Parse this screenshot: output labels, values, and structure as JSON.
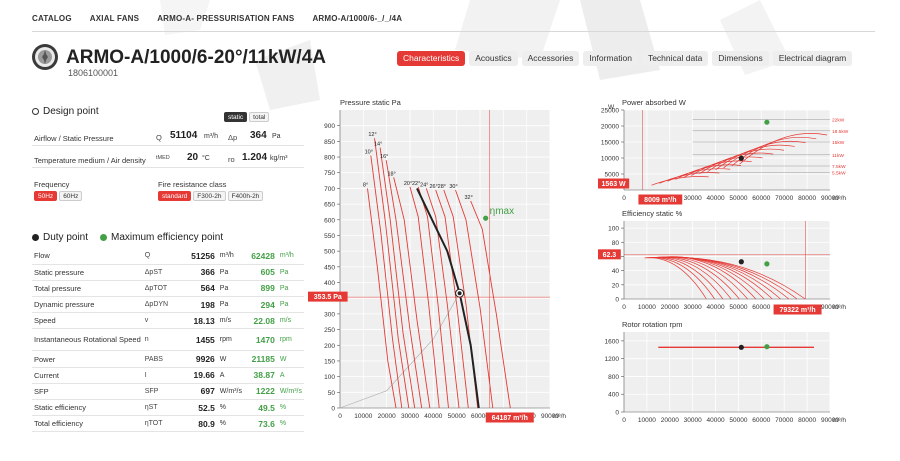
{
  "breadcrumb": [
    "CATALOG",
    "AXIAL FANS",
    "ARMO-A- PRESSURISATION FANS",
    "ARMO-A/1000/6-_/_/4A"
  ],
  "product": {
    "title": "ARMO-A/1000/6-20°/11kW/4A",
    "code": "1806100001"
  },
  "tabs": [
    {
      "label": "Characteristics",
      "active": true
    },
    {
      "label": "Acoustics",
      "active": false
    },
    {
      "label": "Accessories",
      "active": false
    },
    {
      "label": "Information",
      "active": false
    },
    {
      "label": "Technical data",
      "active": false
    },
    {
      "label": "Dimensions",
      "active": false
    },
    {
      "label": "Electrical diagram",
      "active": false
    }
  ],
  "design_point": {
    "title": "Design point",
    "mode_options": [
      "static",
      "total"
    ],
    "airflow_label": "Airflow / Static Pressure",
    "q_symbol": "Q",
    "q_value": "51104",
    "q_unit": "m³/h",
    "dp_symbol": "Δp",
    "dp_value": "364",
    "dp_unit": "Pa",
    "temp_label": "Temperature medium / Air density",
    "t_symbol": "tMED",
    "t_value": "20",
    "t_unit": "°C",
    "rho_symbol": "ro",
    "rho_value": "1.204",
    "rho_unit": "kg/m³",
    "frequency_label": "Frequency",
    "frequency_options": [
      "50Hz",
      "60Hz"
    ],
    "fire_label": "Fire resistance class",
    "fire_options": [
      "standard",
      "F300-2h",
      "F400h-2h"
    ]
  },
  "duty": {
    "duty_title": "Duty point",
    "max_title": "Maximum efficiency point",
    "rows": [
      {
        "label": "Flow",
        "symbol": "Q",
        "duty": "51256",
        "duty_unit": "m³/h",
        "max": "62428",
        "max_unit": "m³/h"
      },
      {
        "label": "Static pressure",
        "symbol": "ΔpST",
        "duty": "366",
        "duty_unit": "Pa",
        "max": "605",
        "max_unit": "Pa"
      },
      {
        "label": "Total pressure",
        "symbol": "ΔpTOT",
        "duty": "564",
        "duty_unit": "Pa",
        "max": "899",
        "max_unit": "Pa"
      },
      {
        "label": "Dynamic pressure",
        "symbol": "ΔpDYN",
        "duty": "198",
        "duty_unit": "Pa",
        "max": "294",
        "max_unit": "Pa"
      },
      {
        "label": "Speed",
        "symbol": "v",
        "duty": "18.13",
        "duty_unit": "m/s",
        "max": "22.08",
        "max_unit": "m/s"
      },
      {
        "label": "Instantaneous Rotational Speed",
        "symbol": "n",
        "duty": "1455",
        "duty_unit": "rpm",
        "max": "1470",
        "max_unit": "rpm"
      },
      {
        "label": "Power",
        "symbol": "PABS",
        "duty": "9926",
        "duty_unit": "W",
        "max": "21185",
        "max_unit": "W"
      },
      {
        "label": "Current",
        "symbol": "I",
        "duty": "19.66",
        "duty_unit": "A",
        "max": "38.87",
        "max_unit": "A"
      },
      {
        "label": "SFP",
        "symbol": "SFP",
        "duty": "697",
        "duty_unit": "W/m³/s",
        "max": "1222",
        "max_unit": "W/m³/s"
      },
      {
        "label": "Static efficiency",
        "symbol": "ηST",
        "duty": "52.5",
        "duty_unit": "%",
        "max": "49.5",
        "max_unit": "%"
      },
      {
        "label": "Total efficiency",
        "symbol": "ηTOT",
        "duty": "80.9",
        "duty_unit": "%",
        "max": "73.6",
        "max_unit": "%"
      }
    ]
  },
  "colors": {
    "accent": "#e53935",
    "duty": "#222222",
    "max": "#43a047",
    "curve": "#e53935"
  },
  "chart_data": [
    {
      "id": "pressure",
      "type": "line",
      "title": "Pressure static Pa",
      "xlabel": "m³/h",
      "xlim": [
        0,
        90000
      ],
      "ylim": [
        0,
        950
      ],
      "x_ticks": [
        "0",
        "10000",
        "20000",
        "30000",
        "40000",
        "50000",
        "60000",
        "70000",
        "80000",
        "90000"
      ],
      "y_ticks": [
        "0",
        "50",
        "100",
        "150",
        "200",
        "250",
        "300",
        "350",
        "400",
        "450",
        "500",
        "550",
        "600",
        "650",
        "700",
        "750",
        "800",
        "850",
        "900"
      ],
      "series": [
        {
          "name": "8°",
          "x": [
            11800,
            16000,
            20500,
            24000
          ],
          "y": [
            700,
            450,
            150,
            0
          ]
        },
        {
          "name": "10°",
          "x": [
            13200,
            17500,
            22500,
            26500
          ],
          "y": [
            805,
            560,
            220,
            0
          ]
        },
        {
          "name": "12°",
          "x": [
            14800,
            19500,
            25000,
            29500
          ],
          "y": [
            860,
            590,
            220,
            0
          ]
        },
        {
          "name": "14°",
          "x": [
            17200,
            21500,
            27000,
            32000
          ],
          "y": [
            830,
            600,
            240,
            0
          ]
        },
        {
          "name": "16°",
          "x": [
            19800,
            24000,
            30000,
            35000
          ],
          "y": [
            790,
            600,
            250,
            0
          ]
        },
        {
          "name": "18°",
          "x": [
            23000,
            27500,
            33000,
            38500
          ],
          "y": [
            735,
            600,
            280,
            0
          ]
        },
        {
          "name": "20°",
          "x": [
            30000,
            33500,
            38000,
            42500
          ],
          "y": [
            705,
            610,
            330,
            0
          ]
        },
        {
          "name": "22°",
          "x": [
            33500,
            37500,
            42000,
            46500
          ],
          "y": [
            705,
            610,
            330,
            0
          ]
        },
        {
          "name": "24°",
          "x": [
            37000,
            41000,
            46000,
            51000
          ],
          "y": [
            700,
            610,
            330,
            0
          ]
        },
        {
          "name": "26°",
          "x": [
            41000,
            45000,
            50000,
            55000
          ],
          "y": [
            695,
            610,
            330,
            0
          ]
        },
        {
          "name": "28°",
          "x": [
            44500,
            48500,
            54000,
            59000
          ],
          "y": [
            695,
            610,
            330,
            0
          ]
        },
        {
          "name": "30°",
          "x": [
            49500,
            54000,
            60000,
            65500
          ],
          "y": [
            695,
            600,
            320,
            0
          ]
        },
        {
          "name": "32°",
          "x": [
            56000,
            61000,
            67000,
            73000
          ],
          "y": [
            660,
            570,
            300,
            0
          ]
        }
      ],
      "duty_curve": {
        "x": [
          33000,
          38500,
          46000,
          51256,
          56000,
          59500
        ],
        "y": [
          700,
          615,
          500,
          366,
          200,
          0
        ]
      },
      "system_curve": {
        "x": [
          0,
          20000,
          40000,
          51256
        ],
        "y": [
          0,
          55,
          220,
          366
        ]
      },
      "duty_point": {
        "x": 51256,
        "y": 366
      },
      "max_point": {
        "x": 62428,
        "y": 605
      },
      "max_label": "ηmax",
      "x_marker": "64187 m³/h",
      "y_marker": "353.5 Pa"
    },
    {
      "id": "power",
      "type": "line",
      "title": "Power absorbed W",
      "ylabel": "W",
      "xlabel": "m³/h",
      "xlim": [
        0,
        90000
      ],
      "ylim": [
        0,
        25000
      ],
      "x_ticks": [
        "0",
        "10000",
        "20000",
        "30000",
        "40000",
        "50000",
        "60000",
        "70000",
        "80000",
        "90000"
      ],
      "y_ticks": [
        "5000",
        "10000",
        "15000",
        "20000",
        "25000"
      ],
      "limits": [
        "22kW",
        "18.5kW",
        "15kW",
        "11kW",
        "7.5kW",
        "5.5kW"
      ],
      "limit_values": [
        22000,
        18500,
        15000,
        11000,
        7500,
        5500
      ],
      "duty_point": {
        "x": 51256,
        "y": 9926
      },
      "max_point": {
        "x": 62428,
        "y": 21185
      },
      "x_marker": "8009 m³/h",
      "y_marker": "1563 W"
    },
    {
      "id": "efficiency",
      "type": "line",
      "title": "Efficiency static %",
      "xlabel": "m³/h",
      "xlim": [
        0,
        90000
      ],
      "ylim": [
        0,
        110
      ],
      "x_ticks": [
        "0",
        "10000",
        "20000",
        "30000",
        "40000",
        "50000",
        "60000",
        "70000",
        "80000",
        "90000"
      ],
      "y_ticks": [
        "0",
        "20",
        "40",
        "60",
        "80",
        "100"
      ],
      "duty_point": {
        "x": 51256,
        "y": 52.5
      },
      "max_point": {
        "x": 62428,
        "y": 49.5
      },
      "x_marker": "79322 m³/h",
      "y_marker": "62.3"
    },
    {
      "id": "rotation",
      "type": "line",
      "title": "Rotor rotation rpm",
      "xlabel": "m³/h",
      "xlim": [
        0,
        90000
      ],
      "ylim": [
        0,
        1800
      ],
      "x_ticks": [
        "0",
        "10000",
        "20000",
        "30000",
        "40000",
        "50000",
        "60000",
        "70000",
        "80000",
        "90000"
      ],
      "y_ticks": [
        "0",
        "400",
        "800",
        "1200",
        "1600"
      ],
      "line": {
        "x": [
          15000,
          83000
        ],
        "y": [
          1455,
          1455
        ]
      },
      "duty_point": {
        "x": 51256,
        "y": 1455
      },
      "max_point": {
        "x": 62428,
        "y": 1470
      }
    }
  ]
}
